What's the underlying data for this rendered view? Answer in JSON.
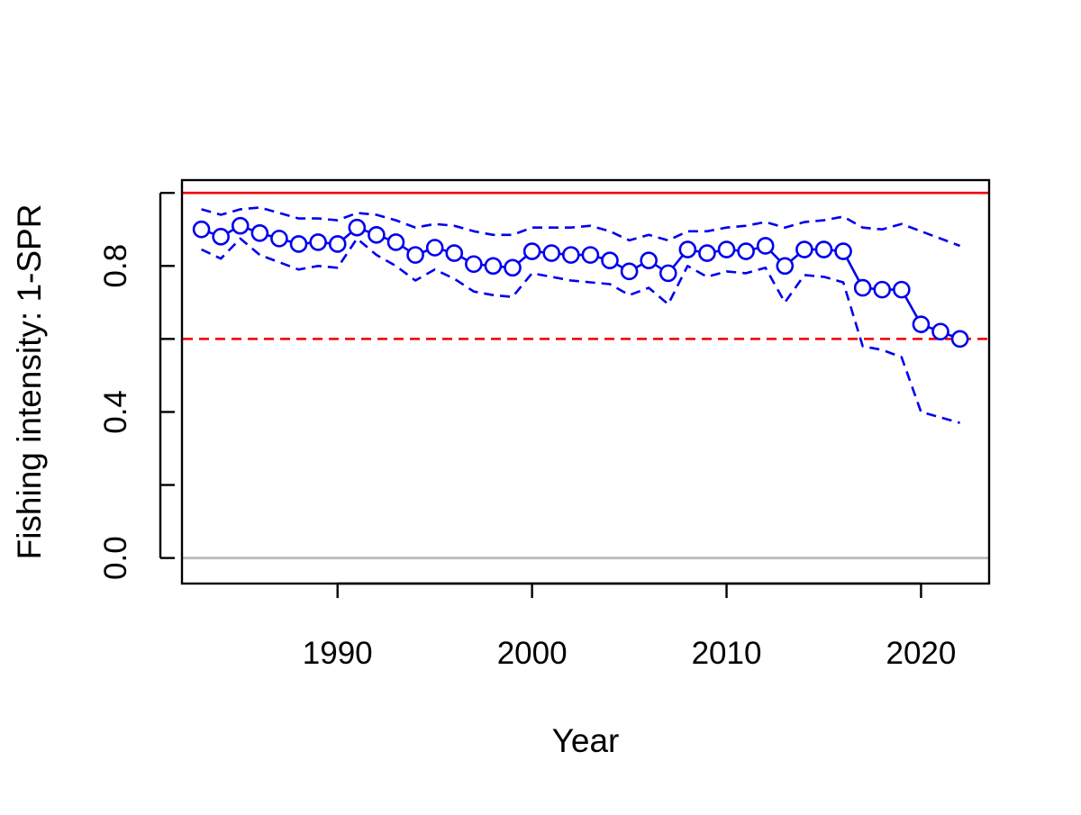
{
  "chart_data": {
    "type": "line",
    "title": "",
    "xlabel": "Year",
    "ylabel": "Fishing intensity: 1-SPR",
    "xlim": [
      1982,
      2023.5
    ],
    "ylim": [
      -0.07,
      1.035
    ],
    "x_ticks": [
      1990,
      2000,
      2010,
      2020
    ],
    "y_ticks": [
      0.0,
      0.2,
      0.4,
      0.6,
      0.8,
      1.0
    ],
    "y_tick_labels": [
      {
        "value": 0.0,
        "label": "0.0"
      },
      {
        "value": 0.4,
        "label": "0.4"
      },
      {
        "value": 0.8,
        "label": "0.8"
      }
    ],
    "grid": false,
    "legend": "none",
    "x": [
      1983,
      1984,
      1985,
      1986,
      1987,
      1988,
      1989,
      1990,
      1991,
      1992,
      1993,
      1994,
      1995,
      1996,
      1997,
      1998,
      1999,
      2000,
      2001,
      2002,
      2003,
      2004,
      2005,
      2006,
      2007,
      2008,
      2009,
      2010,
      2011,
      2012,
      2013,
      2014,
      2015,
      2016,
      2017,
      2018,
      2019,
      2020,
      2021,
      2022
    ],
    "series": [
      {
        "role": "estimate",
        "style": "line-with-open-circles",
        "color": "#0000ee",
        "values": [
          0.9,
          0.88,
          0.91,
          0.89,
          0.875,
          0.86,
          0.865,
          0.86,
          0.905,
          0.885,
          0.865,
          0.83,
          0.85,
          0.835,
          0.805,
          0.8,
          0.795,
          0.84,
          0.835,
          0.83,
          0.83,
          0.815,
          0.785,
          0.815,
          0.78,
          0.845,
          0.835,
          0.845,
          0.84,
          0.855,
          0.8,
          0.845,
          0.845,
          0.84,
          0.74,
          0.735,
          0.735,
          0.64,
          0.62,
          0.6
        ]
      },
      {
        "role": "upper-interval",
        "style": "dashed",
        "color": "#0000ee",
        "values": [
          0.955,
          0.94,
          0.955,
          0.96,
          0.945,
          0.93,
          0.93,
          0.925,
          0.945,
          0.94,
          0.925,
          0.905,
          0.915,
          0.91,
          0.895,
          0.885,
          0.885,
          0.905,
          0.905,
          0.905,
          0.91,
          0.895,
          0.87,
          0.885,
          0.87,
          0.895,
          0.895,
          0.905,
          0.91,
          0.92,
          0.905,
          0.92,
          0.925,
          0.935,
          0.905,
          0.9,
          0.915,
          0.895,
          0.875,
          0.855
        ]
      },
      {
        "role": "lower-interval",
        "style": "dashed",
        "color": "#0000ee",
        "values": [
          0.845,
          0.82,
          0.875,
          0.83,
          0.81,
          0.79,
          0.8,
          0.795,
          0.875,
          0.83,
          0.8,
          0.76,
          0.79,
          0.765,
          0.73,
          0.72,
          0.715,
          0.78,
          0.77,
          0.76,
          0.755,
          0.75,
          0.72,
          0.74,
          0.695,
          0.8,
          0.77,
          0.785,
          0.78,
          0.795,
          0.7,
          0.775,
          0.77,
          0.755,
          0.58,
          0.57,
          0.55,
          0.4,
          0.385,
          0.37
        ]
      }
    ],
    "reference_lines": [
      {
        "y": 1.0,
        "color": "#ee0000",
        "style": "solid"
      },
      {
        "y": 0.6,
        "color": "#ee0000",
        "style": "dashed"
      },
      {
        "y": 0.0,
        "color": "#bebebe",
        "style": "solid"
      }
    ]
  }
}
